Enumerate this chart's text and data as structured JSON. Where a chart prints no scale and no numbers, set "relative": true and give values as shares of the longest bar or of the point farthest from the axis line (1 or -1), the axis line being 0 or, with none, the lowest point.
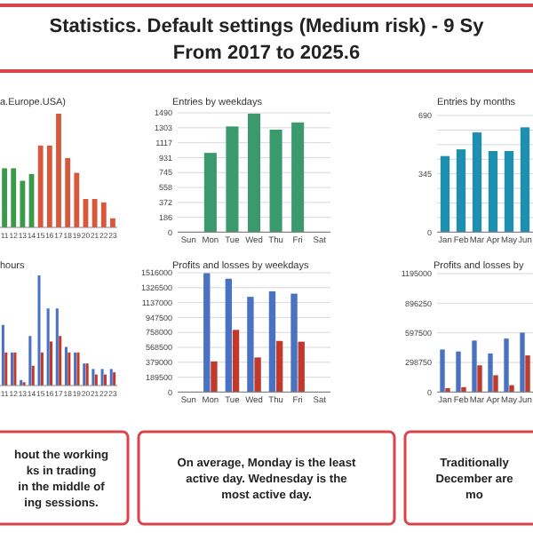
{
  "chart_data": [
    {
      "type": "other",
      "title": "Statistics. Default settings (Medium risk) - 9 Sy",
      "subtitle": "From 2017 to 2025.6"
    },
    {
      "type": "bar",
      "title": "a.Europe.USA)",
      "relative": true,
      "categories": [
        "11",
        "12",
        "13",
        "14",
        "15",
        "16",
        "17",
        "18",
        "19",
        "20",
        "21",
        "22",
        "23"
      ],
      "values": [
        0.52,
        0.52,
        0.41,
        0.47,
        0.72,
        0.72,
        1,
        0.61,
        0.48,
        0.25,
        0.25,
        0.22,
        0.08
      ],
      "colors": [
        "#3a9a4a",
        "#3a9a4a",
        "#3a9a4a",
        "#3a9a4a",
        "#d9573b",
        "#d9573b",
        "#d9573b",
        "#d9573b",
        "#d9573b",
        "#d9573b",
        "#d9573b",
        "#d9573b",
        "#d9573b"
      ]
    },
    {
      "type": "bar",
      "title": "Entries by weekdays",
      "categories": [
        "Sun",
        "Mon",
        "Tue",
        "Wed",
        "Thu",
        "Fri",
        "Sat"
      ],
      "values": [
        0,
        990,
        1320,
        1480,
        1280,
        1370,
        0
      ],
      "color": "#3a9a6e",
      "ylim": [
        0,
        1490
      ],
      "yticks": [
        0,
        186,
        372,
        558,
        745,
        931,
        1117,
        1303,
        1490
      ],
      "grid": "y"
    },
    {
      "type": "bar",
      "title": "Entries by months",
      "categories": [
        "Jan",
        "Feb",
        "Mar",
        "Apr",
        "May",
        "Jun"
      ],
      "values": [
        450,
        490,
        590,
        480,
        480,
        620
      ],
      "color": "#1f8fb0",
      "ylim": [
        0,
        690
      ],
      "yticks": [
        0,
        {
          "value": 86.25,
          "label": null
        },
        {
          "value": 172.5,
          "label": null
        },
        {
          "value": 258.75,
          "label": null
        },
        345,
        {
          "value": 431.25,
          "label": null
        },
        {
          "value": 517.5,
          "label": null
        },
        {
          "value": 603.75,
          "label": null
        },
        690
      ],
      "grid": "y"
    },
    {
      "type": "bar",
      "title": "hours",
      "relative": true,
      "categories": [
        "11",
        "12",
        "13",
        "14",
        "15",
        "16",
        "17",
        "18",
        "19",
        "20",
        "21",
        "22",
        "23"
      ],
      "series": [
        {
          "color": "#4a72c4",
          "values": [
            0.55,
            0.3,
            0.05,
            0.45,
            1,
            0.7,
            0.7,
            0.35,
            0.3,
            0.2,
            0.15,
            0.15,
            0.15
          ]
        },
        {
          "color": "#c0392b",
          "values": [
            0.3,
            0.3,
            0.03,
            0.18,
            0.3,
            0.4,
            0.45,
            0.3,
            0.3,
            0.2,
            0.1,
            0.1,
            0.12
          ]
        }
      ]
    },
    {
      "type": "bar",
      "title": "Profits and losses by weekdays",
      "categories": [
        "Sun",
        "Mon",
        "Tue",
        "Wed",
        "Thu",
        "Fri",
        "Sat"
      ],
      "ylim": [
        0,
        1516000
      ],
      "yticks": [
        0,
        189500,
        379000,
        568500,
        758000,
        947500,
        1137000,
        1326500,
        1516000
      ],
      "grid": "y",
      "series": [
        {
          "color": "#4a72c4",
          "values": [
            0,
            1510000,
            1440000,
            1210000,
            1280000,
            1250000,
            0
          ]
        },
        {
          "color": "#c0392b",
          "values": [
            0,
            390000,
            790000,
            440000,
            650000,
            640000,
            0
          ]
        }
      ]
    },
    {
      "type": "bar",
      "title": "Profits and losses by",
      "categories": [
        "Jan",
        "Feb",
        "Mar",
        "Apr",
        "May",
        "Jun"
      ],
      "ylim": [
        0,
        1195000
      ],
      "yticks": [
        0,
        298750,
        597500,
        896250,
        1195000
      ],
      "grid": "y",
      "series": [
        {
          "color": "#4a72c4",
          "values": [
            430000,
            410000,
            520000,
            390000,
            540000,
            600000
          ]
        },
        {
          "color": "#c0392b",
          "values": [
            40000,
            50000,
            270000,
            170000,
            70000,
            370000
          ]
        }
      ]
    },
    {
      "type": "other",
      "annotations": [
        "hout the working",
        "ks in trading",
        "in the middle of",
        "ing sessions."
      ]
    },
    {
      "type": "other",
      "annotations": [
        "On average, Monday is the least",
        "active day. Wednesday is the",
        "most active day."
      ]
    },
    {
      "type": "other",
      "annotations": [
        "Traditionally",
        "December are",
        "mo"
      ]
    }
  ]
}
